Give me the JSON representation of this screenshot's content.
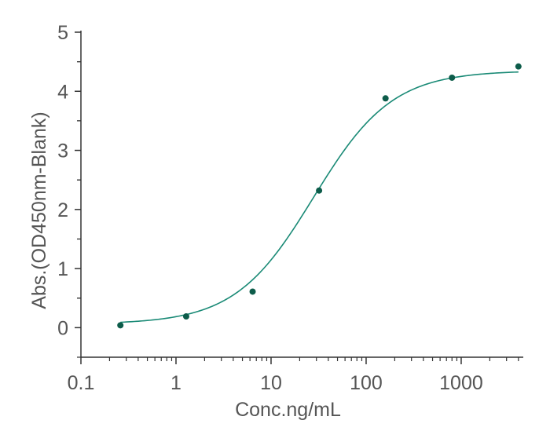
{
  "chart_data": {
    "type": "scatter",
    "xlabel": "Conc.ng/mL",
    "ylabel": "Abs.(OD450nm-Blank)",
    "xscale": "log",
    "xlim": [
      0.1,
      4500
    ],
    "ylim": [
      -0.5,
      5
    ],
    "xticks": [
      0.1,
      1,
      10,
      100,
      1000
    ],
    "xtick_labels": [
      "0.1",
      "1",
      "10",
      "100",
      "1000"
    ],
    "yticks": [
      0,
      1,
      2,
      3,
      4,
      5
    ],
    "ytick_labels": [
      "0",
      "1",
      "2",
      "3",
      "4",
      "5"
    ],
    "grid": false,
    "legend": "none",
    "colors": {
      "points": "#0d5c4a",
      "fit_curve": "#1a8a76",
      "axis": "#333333",
      "text": "#555555"
    },
    "points": {
      "x": [
        0.26,
        1.28,
        6.4,
        32,
        160,
        800,
        4000
      ],
      "y": [
        0.04,
        0.19,
        0.61,
        2.32,
        3.88,
        4.23,
        4.42
      ]
    },
    "fit_curve": {
      "model": "4PL",
      "bottom": 0.06,
      "top": 4.35,
      "ec50": 28,
      "hill": 1.05
    }
  }
}
